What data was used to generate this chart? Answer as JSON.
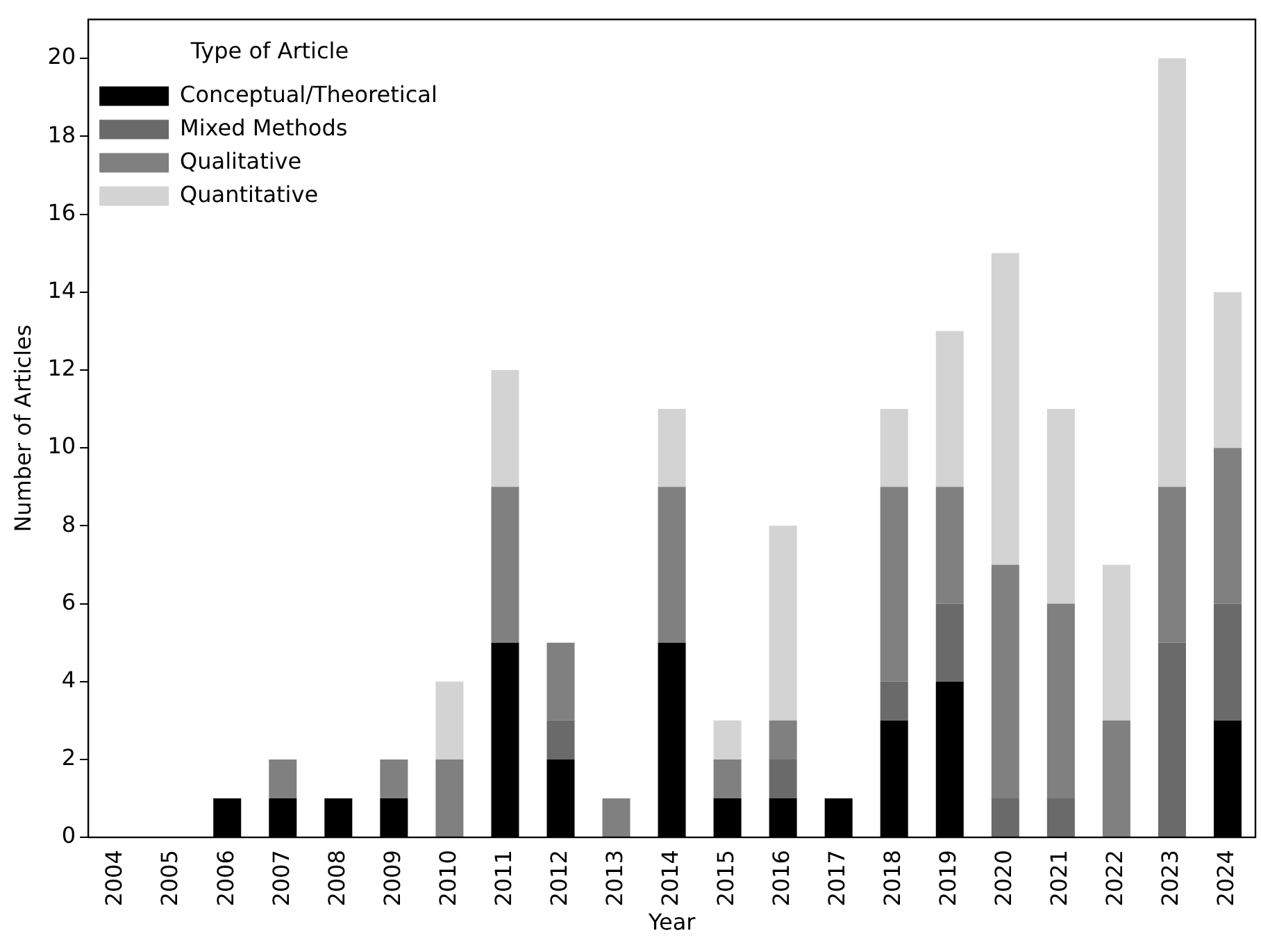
{
  "chart_data": {
    "type": "bar",
    "stacked": true,
    "xlabel": "Year",
    "ylabel": "Number of Articles",
    "legend_title": "Type of Article",
    "legend": "top left",
    "grid": false,
    "categories": [
      "2004",
      "2005",
      "2006",
      "2007",
      "2008",
      "2009",
      "2010",
      "2011",
      "2012",
      "2013",
      "2014",
      "2015",
      "2016",
      "2017",
      "2018",
      "2019",
      "2020",
      "2021",
      "2022",
      "2023",
      "2024"
    ],
    "ylim": [
      0,
      21
    ],
    "yticks": [
      0,
      2,
      4,
      6,
      8,
      10,
      12,
      14,
      16,
      18,
      20
    ],
    "series": [
      {
        "name": "Conceptual/Theoretical",
        "color": "#000000",
        "values": [
          0,
          0,
          1,
          1,
          1,
          1,
          0,
          5,
          2,
          0,
          5,
          1,
          1,
          1,
          3,
          4,
          0,
          0,
          0,
          0,
          3
        ]
      },
      {
        "name": "Mixed Methods",
        "color": "#6a6a6a",
        "values": [
          0,
          0,
          0,
          0,
          0,
          0,
          0,
          0,
          1,
          0,
          0,
          0,
          1,
          0,
          1,
          2,
          1,
          1,
          0,
          5,
          3
        ]
      },
      {
        "name": "Qualitative",
        "color": "#808080",
        "values": [
          0,
          0,
          0,
          1,
          0,
          1,
          2,
          4,
          2,
          1,
          4,
          1,
          1,
          0,
          5,
          3,
          6,
          5,
          3,
          4,
          4
        ]
      },
      {
        "name": "Quantitative",
        "color": "#d3d3d3",
        "values": [
          0,
          0,
          0,
          0,
          0,
          0,
          2,
          3,
          0,
          0,
          2,
          1,
          5,
          0,
          2,
          4,
          8,
          5,
          4,
          11,
          4
        ]
      }
    ]
  }
}
